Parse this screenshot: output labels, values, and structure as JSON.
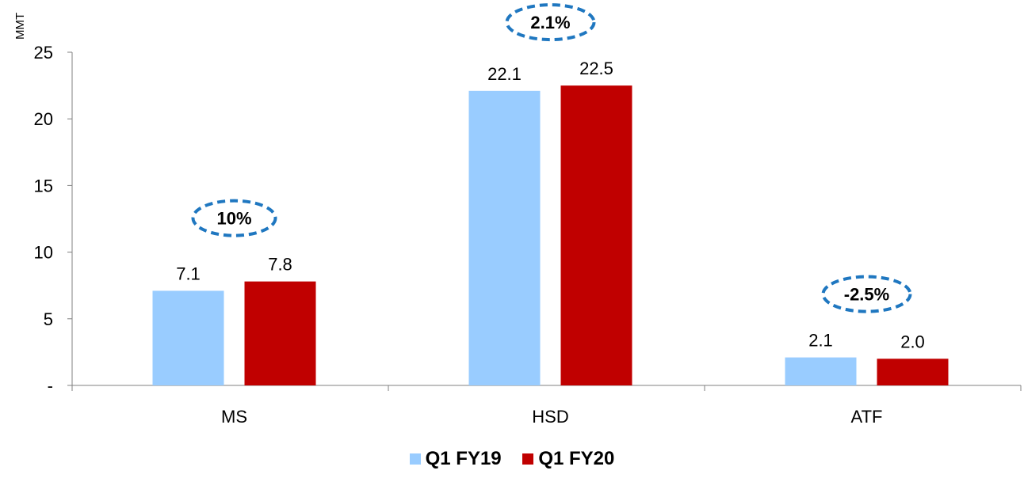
{
  "chart_data": {
    "type": "bar",
    "ylabel": "MMT",
    "categories": [
      "MS",
      "HSD",
      "ATF"
    ],
    "series": [
      {
        "name": "Q1 FY19",
        "color": "#99ccff",
        "values": [
          7.1,
          22.1,
          2.1
        ],
        "labels": [
          "7.1",
          "22.1",
          "2.1"
        ]
      },
      {
        "name": "Q1 FY20",
        "color": "#c00000",
        "values": [
          7.8,
          22.5,
          2.0
        ],
        "labels": [
          "7.8",
          "22.5",
          "2.0"
        ]
      }
    ],
    "ylim": [
      0,
      25
    ],
    "yticks": [
      0,
      5,
      10,
      15,
      20,
      25
    ],
    "ytick_labels": [
      "-",
      "5",
      "10",
      "15",
      "20",
      "25"
    ],
    "grid": false,
    "legend_position": "bottom",
    "annotations": [
      {
        "category": "MS",
        "text": "10%"
      },
      {
        "category": "HSD",
        "text": "2.1%"
      },
      {
        "category": "ATF",
        "text": "-2.5%"
      }
    ],
    "annotation_color": "#1f77c0"
  }
}
